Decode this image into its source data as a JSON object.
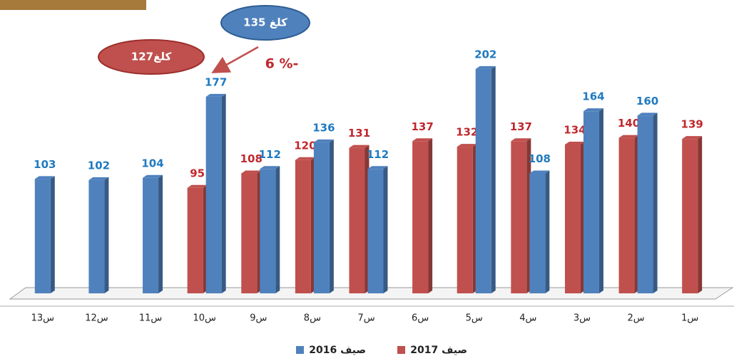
{
  "chart_data": {
    "type": "bar",
    "categories": [
      "س1",
      "س2",
      "س3",
      "س4",
      "س5",
      "س6",
      "س7",
      "س8",
      "س9",
      "س10",
      "س11",
      "س12",
      "س13"
    ],
    "series": [
      {
        "name": "صيف 2017",
        "color": "#c0504d",
        "label_color": "#c0282d",
        "values": [
          139,
          140,
          134,
          137,
          132,
          137,
          131,
          120,
          108,
          95,
          null,
          null,
          null
        ]
      },
      {
        "name": "صيف 2016",
        "color": "#4f81bd",
        "label_color": "#1f7ac0",
        "values": [
          null,
          160,
          164,
          108,
          202,
          null,
          112,
          136,
          112,
          177,
          104,
          102,
          103
        ]
      }
    ],
    "ylim": [
      0,
      250
    ],
    "x_reversed": true,
    "legend": "bottom",
    "annotations": [
      "135 كلغ",
      "127كلغ",
      "6 %-"
    ]
  }
}
